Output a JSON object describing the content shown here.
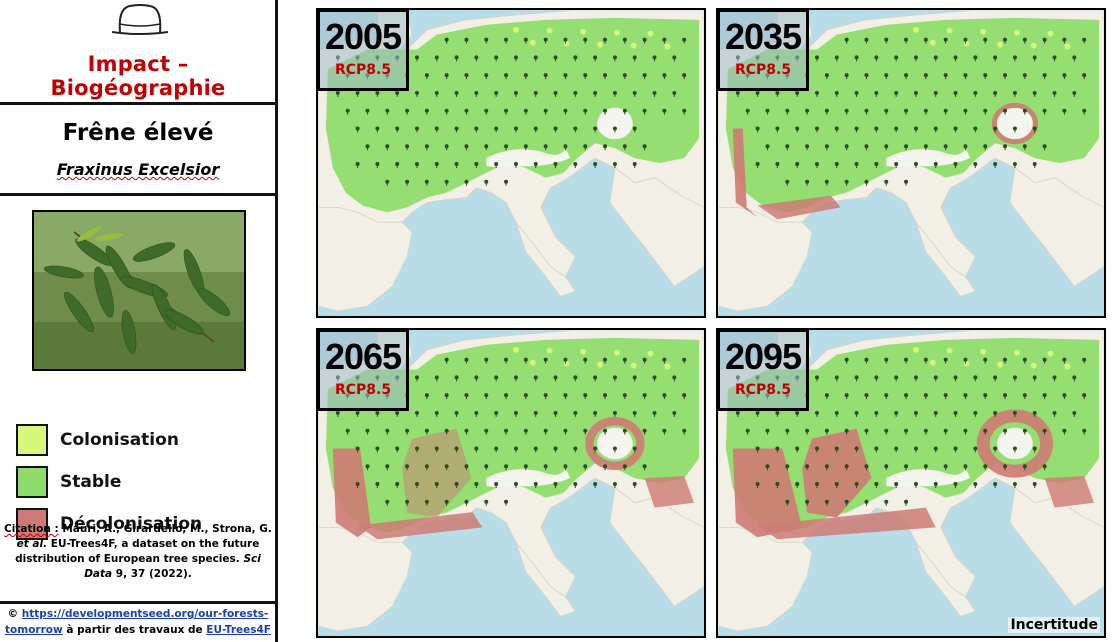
{
  "sidebar": {
    "title": "Impact – Biogéographie",
    "species_common": "Frêne élevé",
    "species_latin": "Fraxinus Excelsior",
    "hat_icon": "hat-icon",
    "legend": [
      {
        "label": "Colonisation",
        "color": "#d6f77a"
      },
      {
        "label": "Stable",
        "color": "#8fdc6c"
      },
      {
        "label": "Décolonisation",
        "color": "#cd7b74"
      }
    ],
    "citation": {
      "prefix": "Citation :",
      "authors": "Mauri, A., Girardello, M., Strona, G.",
      "etal": "et al.",
      "rest1": "EU-Trees4F, a dataset on the future distribution of European tree species.",
      "journal": "Sci Data",
      "rest2": "9, 37 (2022)."
    },
    "credits": {
      "symbol": "©",
      "url": "https://developmentseed.org/our-forests-tomorrow",
      "middle": "à partir des travaux de",
      "source": "EU-Trees4F"
    }
  },
  "panels": [
    {
      "year": "2005",
      "scenario": "RCP8.5",
      "decolonisation_level": 0.0
    },
    {
      "year": "2035",
      "scenario": "RCP8.5",
      "decolonisation_level": 0.2
    },
    {
      "year": "2065",
      "scenario": "RCP8.5",
      "decolonisation_level": 0.55
    },
    {
      "year": "2095",
      "scenario": "RCP8.5",
      "decolonisation_level": 1.0
    }
  ],
  "uncertainty_label": "Incertitude",
  "colors": {
    "sea": "#b8dde9",
    "land": "#f2efe6",
    "stable": "#8fdc6c",
    "colonisation": "#d6f77a",
    "decolonisation": "#cd7b74",
    "accent": "#c00000"
  }
}
